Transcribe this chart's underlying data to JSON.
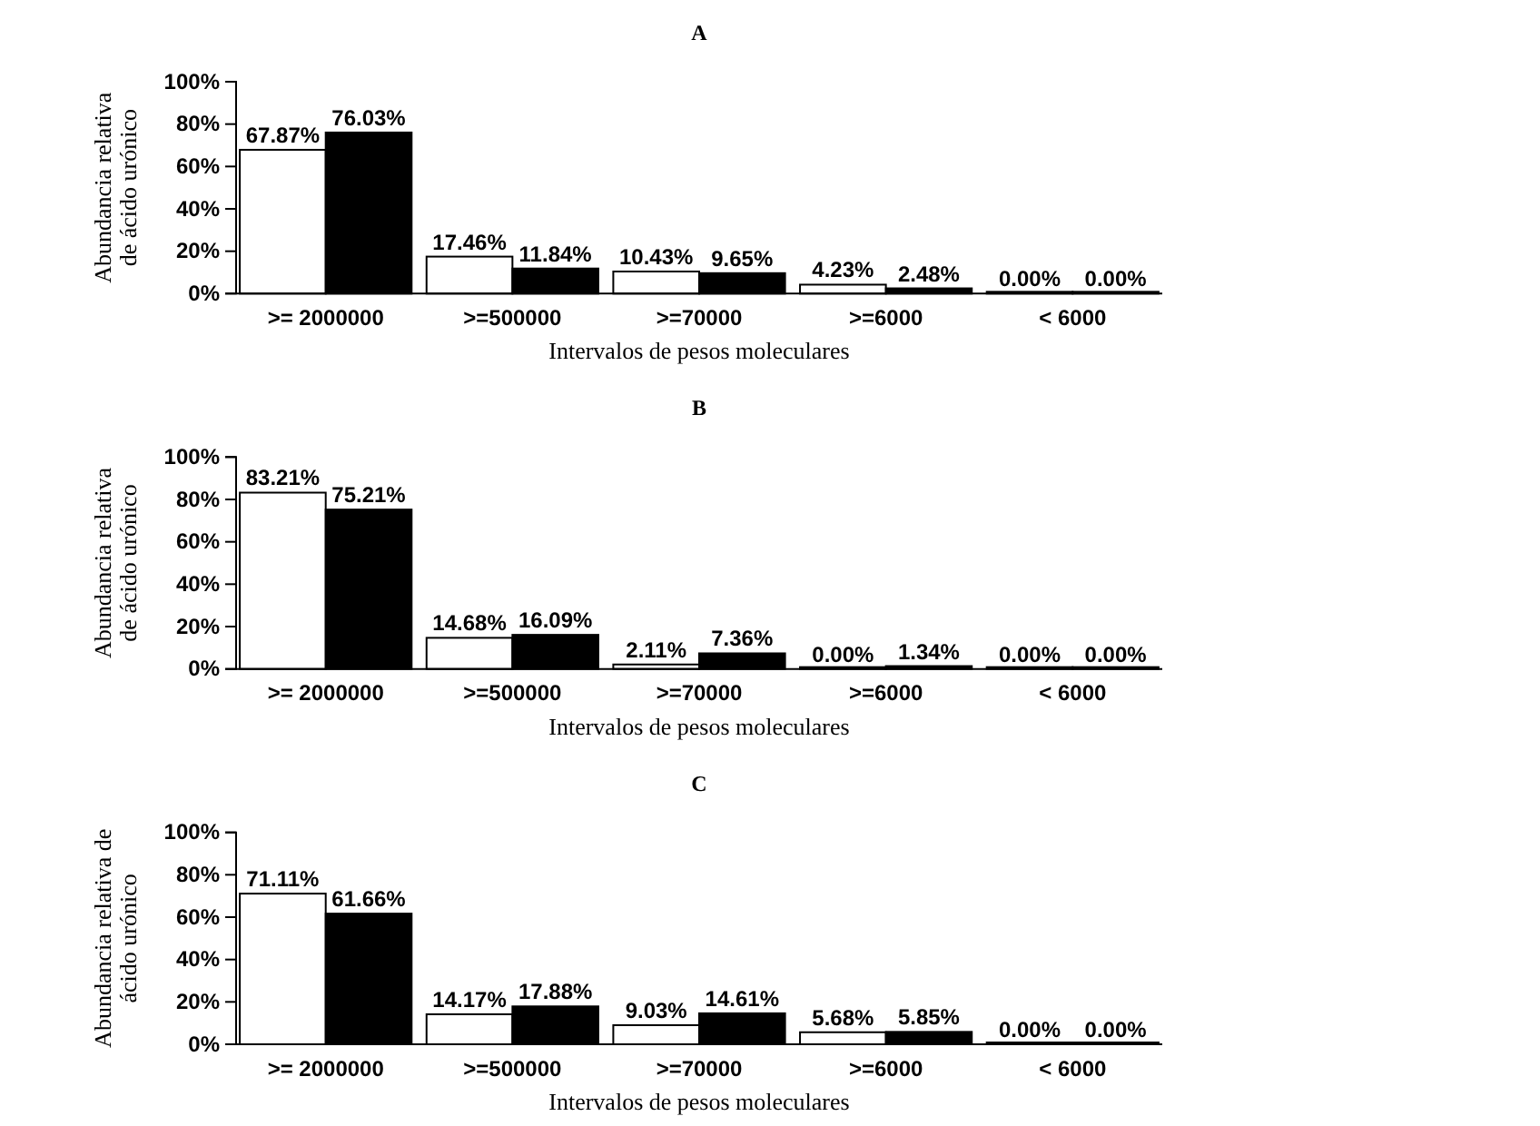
{
  "chart_data": [
    {
      "type": "bar",
      "title": "A",
      "ylabel": "Abundancia relativa\nde ácido urónico",
      "xlabel": "Intervalos de pesos moleculares",
      "categories": [
        ">= 2000000",
        ">=500000",
        ">=70000",
        ">=6000",
        "< 6000"
      ],
      "ylim": [
        0,
        100
      ],
      "yticks": [
        {
          "value": 0,
          "label": "0%"
        },
        {
          "value": 20,
          "label": "20%"
        },
        {
          "value": 40,
          "label": "40%"
        },
        {
          "value": 60,
          "label": "60%"
        },
        {
          "value": 80,
          "label": "80%"
        },
        {
          "value": 100,
          "label": "100%"
        }
      ],
      "series": [
        {
          "color": "#ffffff",
          "values": [
            67.87,
            17.46,
            10.43,
            4.23,
            0.0
          ],
          "value_labels": [
            "67.87%",
            "17.46%",
            "10.43%",
            "4.23%",
            "0.00%"
          ]
        },
        {
          "color": "#000000",
          "values": [
            76.03,
            11.84,
            9.65,
            2.48,
            0.0
          ],
          "value_labels": [
            "76.03%",
            "11.84%",
            "9.65%",
            "2.48%",
            "0.00%"
          ]
        }
      ]
    },
    {
      "type": "bar",
      "title": "B",
      "ylabel": "Abundancia relativa\nde ácido urónico",
      "xlabel": "Intervalos de pesos moleculares",
      "categories": [
        ">= 2000000",
        ">=500000",
        ">=70000",
        ">=6000",
        "< 6000"
      ],
      "ylim": [
        0,
        100
      ],
      "yticks": [
        {
          "value": 0,
          "label": "0%"
        },
        {
          "value": 20,
          "label": "20%"
        },
        {
          "value": 40,
          "label": "40%"
        },
        {
          "value": 60,
          "label": "60%"
        },
        {
          "value": 80,
          "label": "80%"
        },
        {
          "value": 100,
          "label": "100%"
        }
      ],
      "series": [
        {
          "color": "#ffffff",
          "values": [
            83.21,
            14.68,
            2.11,
            0.0,
            0.0
          ],
          "value_labels": [
            "83.21%",
            "14.68%",
            "2.11%",
            "0.00%",
            "0.00%"
          ]
        },
        {
          "color": "#000000",
          "values": [
            75.21,
            16.09,
            7.36,
            1.34,
            0.0
          ],
          "value_labels": [
            "75.21%",
            "16.09%",
            "7.36%",
            "1.34%",
            "0.00%"
          ]
        }
      ]
    },
    {
      "type": "bar",
      "title": "C",
      "ylabel": "Abundancia relativa de\nácido urónico",
      "xlabel": "Intervalos de pesos moleculares",
      "categories": [
        ">= 2000000",
        ">=500000",
        ">=70000",
        ">=6000",
        "< 6000"
      ],
      "ylim": [
        0,
        100
      ],
      "yticks": [
        {
          "value": 0,
          "label": "0%"
        },
        {
          "value": 20,
          "label": "20%"
        },
        {
          "value": 40,
          "label": "40%"
        },
        {
          "value": 60,
          "label": "60%"
        },
        {
          "value": 80,
          "label": "80%"
        },
        {
          "value": 100,
          "label": "100%"
        }
      ],
      "series": [
        {
          "color": "#ffffff",
          "values": [
            71.11,
            14.17,
            9.03,
            5.68,
            0.0
          ],
          "value_labels": [
            "71.11%",
            "14.17%",
            "9.03%",
            "5.68%",
            "0.00%"
          ]
        },
        {
          "color": "#000000",
          "values": [
            61.66,
            17.88,
            14.61,
            5.85,
            0.0
          ],
          "value_labels": [
            "61.66%",
            "17.88%",
            "14.61%",
            "5.85%",
            "0.00%"
          ]
        }
      ]
    }
  ]
}
